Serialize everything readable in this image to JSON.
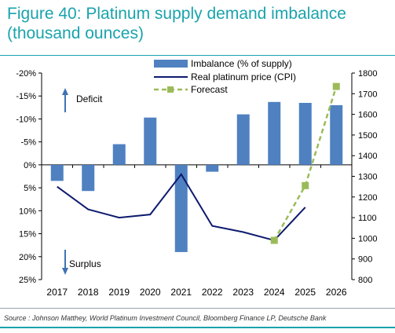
{
  "title": "Figure 40: Platinum supply demand imbalance (thousand ounces)",
  "source": "Source : Johnson Matthey, World Platinum Investment Council, Bloomberg Finance LP, Deutsche Bank",
  "colors": {
    "title": "#1aa3ad",
    "bar": "#4f81c1",
    "price_line": "#0d1a6e",
    "forecast": "#9bbb59",
    "annotation_arrow": "#3d73b5"
  },
  "annotations": {
    "deficit": "Deficit",
    "surplus": "Surplus"
  },
  "chart_data": {
    "type": "bar",
    "categories": [
      "2017",
      "2018",
      "2019",
      "2020",
      "2021",
      "2022",
      "2023",
      "2024",
      "2025",
      "2026"
    ],
    "series": [
      {
        "name": "Imbalance (% of supply)",
        "type": "bar",
        "axis": "left",
        "values": [
          3.5,
          5.7,
          -4.5,
          -10.3,
          19.0,
          1.5,
          -11.0,
          -13.7,
          -13.5,
          -13.0
        ]
      },
      {
        "name": "Real platinum price (CPI)",
        "type": "line",
        "axis": "right",
        "values": [
          1250,
          1140,
          1100,
          1115,
          1310,
          1060,
          1030,
          990,
          1150,
          null
        ]
      },
      {
        "name": "Forecast",
        "type": "line",
        "style": "dashed-square-markers",
        "axis": "right",
        "values": [
          null,
          null,
          null,
          null,
          null,
          null,
          null,
          990,
          1255,
          1735
        ]
      }
    ],
    "left_axis": {
      "reversed": true,
      "range": [
        -20,
        25
      ],
      "ticks": [
        "-20%",
        "-15%",
        "-10%",
        "-5%",
        "0%",
        "5%",
        "10%",
        "15%",
        "20%",
        "25%"
      ]
    },
    "right_axis": {
      "range": [
        800,
        1800
      ],
      "ticks": [
        "800",
        "900",
        "1000",
        "1100",
        "1200",
        "1300",
        "1400",
        "1500",
        "1600",
        "1700",
        "1800"
      ]
    },
    "legend_position": "top-right",
    "grid": false
  }
}
